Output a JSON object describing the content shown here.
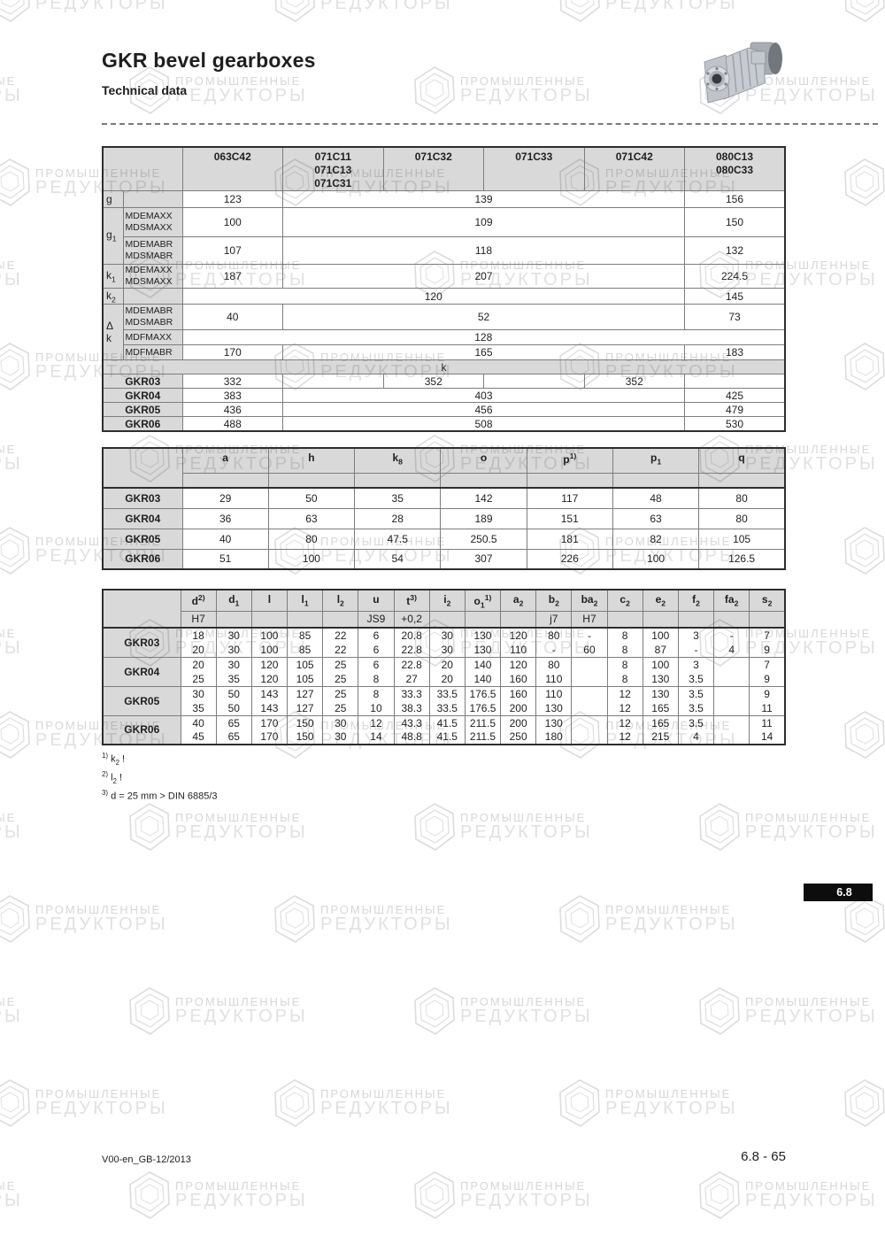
{
  "header": {
    "title": "GKR bevel gearboxes",
    "subtitle": "Technical data"
  },
  "watermark": {
    "line1": "ПРОМЫШЛЕННЫЕ",
    "line2": "РЕДУКТОРЫ"
  },
  "motor_table": {
    "col_headers": [
      "063C42",
      "071C11\n071C13\n071C31",
      "071C32",
      "071C33",
      "071C42",
      "080C13\n080C33"
    ],
    "dim_rows": [
      {
        "label": "g",
        "label_rowspan": 1,
        "sublabel": "",
        "cells": [
          [
            "123",
            1
          ],
          [
            "139",
            4
          ],
          [
            "156",
            1
          ]
        ]
      },
      {
        "label": "g_{1}",
        "label_rowspan": 2,
        "sublabel": "MDEMAXX\nMDSMAXX",
        "cells": [
          [
            "100",
            1
          ],
          [
            "109",
            4
          ],
          [
            "150",
            1
          ]
        ]
      },
      {
        "sublabel": "MDEMABR\nMDSMABR",
        "cells": [
          [
            "107",
            1
          ],
          [
            "118",
            4
          ],
          [
            "132",
            1
          ]
        ]
      },
      {
        "label": "k_{1}",
        "label_rowspan": 1,
        "sublabel": "MDEMAXX\nMDSMAXX",
        "cells": [
          [
            "187",
            1
          ],
          [
            "207",
            4
          ],
          [
            "224.5",
            1
          ]
        ]
      },
      {
        "label": "k_{2}",
        "label_rowspan": 1,
        "sublabel": "",
        "cells": [
          [
            "120",
            5
          ],
          [
            "145",
            1
          ]
        ]
      },
      {
        "label": "Δ k",
        "label_rowspan": 3,
        "sublabel": "MDEMABR\nMDSMABR",
        "cells": [
          [
            "40",
            1
          ],
          [
            "52",
            4
          ],
          [
            "73",
            1
          ]
        ]
      },
      {
        "sublabel": "MDFMAXX",
        "cells": [
          [
            "128",
            6
          ]
        ]
      },
      {
        "sublabel": "MDFMABR",
        "cells": [
          [
            "170",
            1
          ],
          [
            "165",
            4
          ],
          [
            "183",
            1
          ]
        ]
      }
    ],
    "k_banner": "k",
    "k_rows": [
      {
        "label": "GKR03",
        "cells": [
          [
            "332",
            1
          ],
          [
            "",
            1
          ],
          [
            "352",
            1
          ],
          [
            "",
            1
          ],
          [
            "352",
            1
          ],
          [
            "",
            1
          ]
        ]
      },
      {
        "label": "GKR04",
        "cells": [
          [
            "383",
            1
          ],
          [
            "403",
            4
          ],
          [
            "425",
            1
          ]
        ]
      },
      {
        "label": "GKR05",
        "cells": [
          [
            "436",
            1
          ],
          [
            "456",
            4
          ],
          [
            "479",
            1
          ]
        ]
      },
      {
        "label": "GKR06",
        "cells": [
          [
            "488",
            1
          ],
          [
            "508",
            4
          ],
          [
            "530",
            1
          ]
        ]
      }
    ]
  },
  "dim_table": {
    "col_headers": [
      "a",
      "h",
      "k_{8}",
      "o",
      "p^{1)}",
      "p_{1}",
      "q"
    ],
    "rows": [
      {
        "label": "GKR03",
        "values": [
          "29",
          "50",
          "35",
          "142",
          "117",
          "48",
          "80"
        ]
      },
      {
        "label": "GKR04",
        "values": [
          "36",
          "63",
          "28",
          "189",
          "151",
          "63",
          "80"
        ]
      },
      {
        "label": "GKR05",
        "values": [
          "40",
          "80",
          "47.5",
          "250.5",
          "181",
          "82",
          "105"
        ]
      },
      {
        "label": "GKR06",
        "values": [
          "51",
          "100",
          "54",
          "307",
          "226",
          "100",
          "126.5"
        ]
      }
    ]
  },
  "shaft_table": {
    "col_headers": [
      "d^{2)}",
      "d_{1}",
      "l",
      "l_{1}",
      "l_{2}",
      "u",
      "t^{3)}",
      "i_{2}",
      "o_{1}^{1)}",
      "a_{2}",
      "b_{2}",
      "ba_{2}",
      "c_{2}",
      "e_{2}",
      "f_{2}",
      "fa_{2}",
      "s_{2}"
    ],
    "tolerances": [
      "H7",
      "",
      "",
      "",
      "",
      "JS9",
      "+0,2",
      "",
      "",
      "",
      "j7",
      "H7",
      "",
      "",
      "",
      "",
      ""
    ],
    "groups": [
      {
        "label": "GKR03",
        "lines": [
          [
            "18",
            "30",
            "100",
            "85",
            "22",
            "6",
            "20.8",
            "30",
            "130",
            "120",
            "80",
            "-",
            "8",
            "100",
            "3",
            "-",
            "7"
          ],
          [
            "20",
            "30",
            "100",
            "85",
            "22",
            "6",
            "22.8",
            "30",
            "130",
            "110",
            "-",
            "60",
            "8",
            "87",
            "-",
            "4",
            "9"
          ]
        ]
      },
      {
        "label": "GKR04",
        "lines": [
          [
            "20",
            "30",
            "120",
            "105",
            "25",
            "6",
            "22.8",
            "20",
            "140",
            "120",
            "80",
            "",
            "8",
            "100",
            "3",
            "",
            "7"
          ],
          [
            "25",
            "35",
            "120",
            "105",
            "25",
            "8",
            "27",
            "20",
            "140",
            "160",
            "110",
            "",
            "8",
            "130",
            "3.5",
            "",
            "9"
          ]
        ]
      },
      {
        "label": "GKR05",
        "lines": [
          [
            "30",
            "50",
            "143",
            "127",
            "25",
            "8",
            "33.3",
            "33.5",
            "176.5",
            "160",
            "110",
            "",
            "12",
            "130",
            "3.5",
            "",
            "9"
          ],
          [
            "35",
            "50",
            "143",
            "127",
            "25",
            "10",
            "38.3",
            "33.5",
            "176.5",
            "200",
            "130",
            "",
            "12",
            "165",
            "3.5",
            "",
            "11"
          ]
        ]
      },
      {
        "label": "GKR06",
        "lines": [
          [
            "40",
            "65",
            "170",
            "150",
            "30",
            "12",
            "43.3",
            "41.5",
            "211.5",
            "200",
            "130",
            "",
            "12",
            "165",
            "3.5",
            "",
            "11"
          ],
          [
            "45",
            "65",
            "170",
            "150",
            "30",
            "14",
            "48.8",
            "41.5",
            "211.5",
            "250",
            "180",
            "",
            "12",
            "215",
            "4",
            "",
            "14"
          ]
        ]
      }
    ]
  },
  "footnotes": [
    "^{1)} k_{2} !",
    "^{2)} l_{2} !",
    "^{3)} d = 25 mm > DIN 6885/3"
  ],
  "badge": {
    "text": "6.8"
  },
  "footer": {
    "left": "V00-en_GB-12/2013",
    "right": "6.8 - 65"
  }
}
